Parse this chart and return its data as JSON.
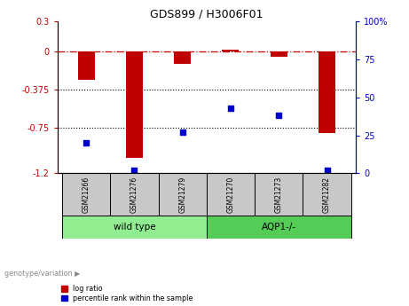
{
  "title": "GDS899 / H3006F01",
  "samples": [
    "GSM21266",
    "GSM21276",
    "GSM21279",
    "GSM21270",
    "GSM21273",
    "GSM21282"
  ],
  "log_ratios": [
    -0.28,
    -1.05,
    -0.12,
    0.02,
    -0.05,
    -0.8
  ],
  "percentile_ranks": [
    20,
    2,
    27,
    43,
    38,
    2
  ],
  "ylim_left": [
    -1.2,
    0.3
  ],
  "ylim_right": [
    0,
    100
  ],
  "yticks_left": [
    0.3,
    0,
    -0.375,
    -0.75,
    -1.2
  ],
  "ytick_labels_left": [
    "0.3",
    "0",
    "-0.375",
    "-0.75",
    "-1.2"
  ],
  "yticks_right": [
    100,
    75,
    50,
    25,
    0
  ],
  "ytick_labels_right": [
    "100%",
    "75",
    "50",
    "25",
    "0"
  ],
  "dotted_lines": [
    -0.375,
    -0.75
  ],
  "bar_color": "#C00000",
  "scatter_color": "#0000CC",
  "sample_box_color": "#C8C8C8",
  "wt_box_color": "#90EE90",
  "aqp1_box_color": "#55CC55",
  "wild_type_label": "wild type",
  "aqp1_label": "AQP1-/-",
  "legend_log_ratio_label": "log ratio",
  "legend_percentile_label": "percentile rank within the sample",
  "genotype_label": "genotype/variation",
  "title_fontsize": 9,
  "tick_fontsize": 7,
  "label_fontsize": 6.5,
  "bar_width": 0.35
}
